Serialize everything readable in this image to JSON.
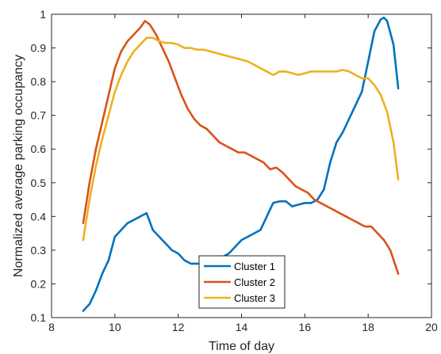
{
  "chart_data": {
    "type": "line",
    "xlabel": "Time of day",
    "ylabel": "Normalized average parking occupancy",
    "xlim": [
      8,
      20
    ],
    "ylim": [
      0.1,
      1
    ],
    "xticks": [
      8,
      10,
      12,
      14,
      16,
      18,
      20
    ],
    "yticks": [
      0.1,
      0.2,
      0.3,
      0.4,
      0.5,
      0.6,
      0.7,
      0.8,
      0.9,
      1
    ],
    "grid": false,
    "legend_position": "bottom-center",
    "series": [
      {
        "name": "Cluster 1",
        "color": "#0072BD",
        "x": [
          9.0,
          9.2,
          9.4,
          9.6,
          9.8,
          10.0,
          10.2,
          10.4,
          10.6,
          10.8,
          11.0,
          11.2,
          11.4,
          11.6,
          11.8,
          12.0,
          12.2,
          12.4,
          12.6,
          12.8,
          13.0,
          13.2,
          13.4,
          13.6,
          13.8,
          14.0,
          14.2,
          14.4,
          14.6,
          14.8,
          15.0,
          15.2,
          15.4,
          15.6,
          15.8,
          16.0,
          16.2,
          16.4,
          16.6,
          16.8,
          17.0,
          17.2,
          17.4,
          17.6,
          17.8,
          18.0,
          18.2,
          18.4,
          18.5,
          18.6,
          18.8,
          18.95
        ],
        "values": [
          0.12,
          0.14,
          0.18,
          0.23,
          0.27,
          0.34,
          0.36,
          0.38,
          0.39,
          0.4,
          0.41,
          0.36,
          0.34,
          0.32,
          0.3,
          0.29,
          0.27,
          0.26,
          0.26,
          0.26,
          0.27,
          0.27,
          0.28,
          0.29,
          0.31,
          0.33,
          0.34,
          0.35,
          0.36,
          0.4,
          0.44,
          0.445,
          0.445,
          0.43,
          0.435,
          0.44,
          0.44,
          0.45,
          0.48,
          0.56,
          0.62,
          0.65,
          0.69,
          0.73,
          0.77,
          0.86,
          0.95,
          0.985,
          0.99,
          0.98,
          0.91,
          0.78
        ]
      },
      {
        "name": "Cluster 2",
        "color": "#D95319",
        "x": [
          9.0,
          9.2,
          9.4,
          9.6,
          9.8,
          10.0,
          10.2,
          10.4,
          10.6,
          10.8,
          10.95,
          11.1,
          11.3,
          11.5,
          11.7,
          11.9,
          12.1,
          12.3,
          12.5,
          12.7,
          12.9,
          13.1,
          13.3,
          13.5,
          13.7,
          13.9,
          14.1,
          14.3,
          14.5,
          14.7,
          14.9,
          15.1,
          15.3,
          15.5,
          15.7,
          15.9,
          16.1,
          16.3,
          16.5,
          16.7,
          16.9,
          17.1,
          17.3,
          17.5,
          17.7,
          17.9,
          18.1,
          18.3,
          18.5,
          18.7,
          18.95
        ],
        "values": [
          0.38,
          0.5,
          0.6,
          0.68,
          0.76,
          0.84,
          0.89,
          0.92,
          0.94,
          0.96,
          0.98,
          0.97,
          0.94,
          0.9,
          0.86,
          0.81,
          0.76,
          0.72,
          0.69,
          0.67,
          0.66,
          0.64,
          0.62,
          0.61,
          0.6,
          0.59,
          0.59,
          0.58,
          0.57,
          0.56,
          0.54,
          0.545,
          0.53,
          0.51,
          0.49,
          0.48,
          0.47,
          0.45,
          0.44,
          0.43,
          0.42,
          0.41,
          0.4,
          0.39,
          0.38,
          0.37,
          0.37,
          0.35,
          0.33,
          0.3,
          0.23
        ]
      },
      {
        "name": "Cluster 3",
        "color": "#EDB120",
        "x": [
          9.0,
          9.2,
          9.4,
          9.6,
          9.8,
          10.0,
          10.2,
          10.4,
          10.6,
          10.8,
          11.0,
          11.2,
          11.4,
          11.6,
          11.8,
          12.0,
          12.2,
          12.4,
          12.6,
          12.8,
          13.0,
          13.2,
          13.4,
          13.6,
          13.8,
          14.0,
          14.2,
          14.4,
          14.6,
          14.8,
          15.0,
          15.2,
          15.4,
          15.6,
          15.8,
          16.0,
          16.2,
          16.4,
          16.6,
          16.8,
          17.0,
          17.2,
          17.4,
          17.6,
          17.8,
          18.0,
          18.2,
          18.4,
          18.6,
          18.8,
          18.95
        ],
        "values": [
          0.33,
          0.45,
          0.55,
          0.63,
          0.7,
          0.77,
          0.82,
          0.86,
          0.89,
          0.91,
          0.93,
          0.93,
          0.92,
          0.915,
          0.915,
          0.91,
          0.9,
          0.9,
          0.895,
          0.895,
          0.89,
          0.885,
          0.88,
          0.875,
          0.87,
          0.865,
          0.86,
          0.85,
          0.84,
          0.83,
          0.82,
          0.83,
          0.83,
          0.825,
          0.82,
          0.825,
          0.83,
          0.83,
          0.83,
          0.83,
          0.83,
          0.835,
          0.83,
          0.82,
          0.81,
          0.81,
          0.79,
          0.76,
          0.71,
          0.62,
          0.51
        ]
      }
    ]
  }
}
